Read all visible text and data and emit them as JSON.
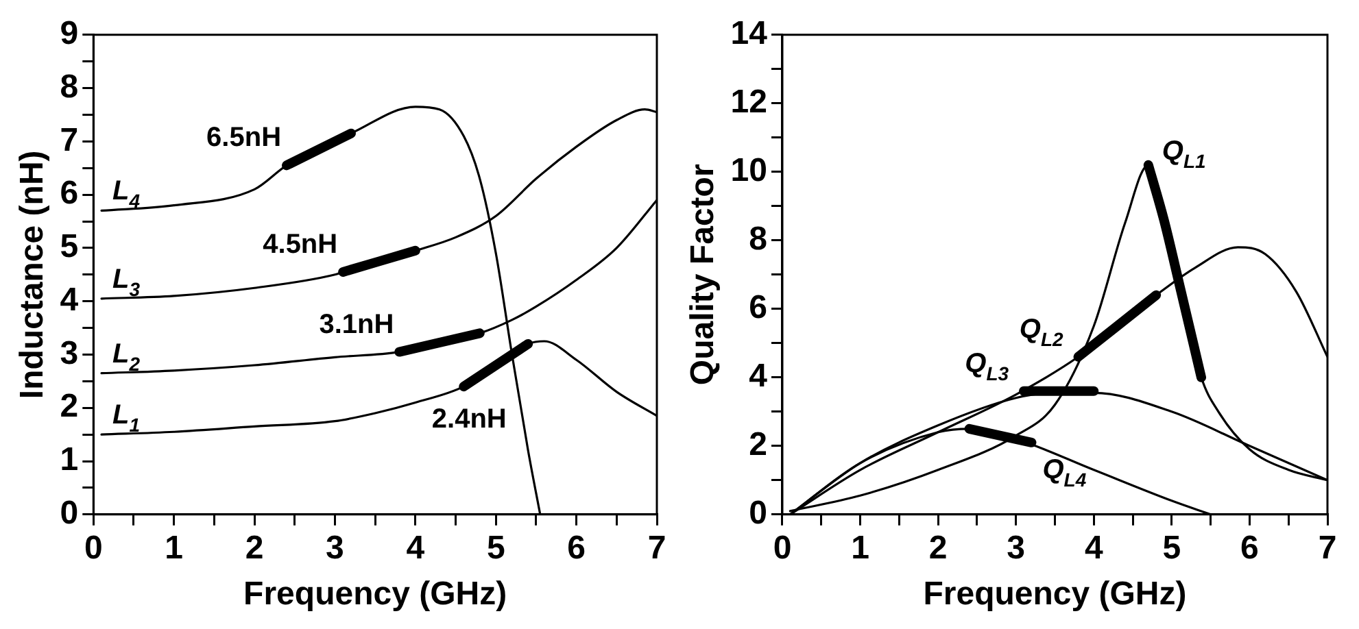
{
  "chart_data": [
    {
      "type": "line",
      "xlabel": "Frequency (GHz)",
      "ylabel": "Inductance (nH)",
      "xlim": [
        0,
        7
      ],
      "ylim": [
        0,
        9
      ],
      "xticks": [
        0,
        {
          "value": 0.5,
          "label": null
        },
        1,
        {
          "value": 1.5,
          "label": null
        },
        2,
        {
          "value": 2.5,
          "label": null
        },
        3,
        {
          "value": 3.5,
          "label": null
        },
        4,
        {
          "value": 4.5,
          "label": null
        },
        5,
        {
          "value": 5.5,
          "label": null
        },
        6,
        {
          "value": 6.5,
          "label": null
        },
        7
      ],
      "yticks": [
        0,
        {
          "value": 0.5,
          "label": null
        },
        1,
        {
          "value": 1.5,
          "label": null
        },
        2,
        {
          "value": 2.5,
          "label": null
        },
        3,
        {
          "value": 3.5,
          "label": null
        },
        4,
        {
          "value": 4.5,
          "label": null
        },
        5,
        {
          "value": 5.5,
          "label": null
        },
        6,
        {
          "value": 6.5,
          "label": null
        },
        7,
        {
          "value": 7.5,
          "label": null
        },
        8,
        {
          "value": 8.5,
          "label": null
        },
        9
      ],
      "grid": false,
      "legend": false,
      "series": [
        {
          "name": "L$_{4}$",
          "color": "#000000",
          "x": [
            0.1,
            1,
            2,
            2.4,
            3.2,
            4,
            4.3,
            4.6,
            4.8,
            5,
            5.2,
            5.4,
            5.55
          ],
          "values": [
            5.7,
            5.8,
            6.1,
            6.55,
            7.15,
            7.65,
            7.6,
            7.1,
            6.3,
            4.9,
            3,
            1.2,
            0
          ]
        },
        {
          "name": "L$_{3}$",
          "color": "#000000",
          "x": [
            0.1,
            1,
            2,
            3,
            3.1,
            4,
            4.5,
            5,
            5.5,
            6,
            6.5,
            6.85,
            7
          ],
          "values": [
            4.05,
            4.1,
            4.25,
            4.5,
            4.55,
            4.95,
            5.2,
            5.6,
            6.3,
            6.9,
            7.4,
            7.6,
            7.55
          ]
        },
        {
          "name": "L$_{2}$",
          "color": "#000000",
          "x": [
            0.1,
            1,
            2,
            3,
            3.8,
            4.8,
            5.2,
            5.5,
            6,
            6.5,
            7
          ],
          "values": [
            2.65,
            2.7,
            2.8,
            2.95,
            3.05,
            3.4,
            3.65,
            3.9,
            4.4,
            5,
            5.9
          ]
        },
        {
          "name": "L$_{1}$",
          "color": "#000000",
          "x": [
            0.1,
            1,
            2,
            3,
            3.5,
            4,
            4.6,
            5,
            5.4,
            5.6,
            6,
            6.5,
            7
          ],
          "values": [
            1.5,
            1.55,
            1.65,
            1.75,
            1.9,
            2.1,
            2.4,
            2.8,
            3.2,
            3.25,
            2.9,
            2.3,
            1.85
          ]
        },
        {
          "name": "6.5nH",
          "color": "#000000",
          "x": [
            2.4,
            3.2
          ],
          "values": [
            6.55,
            7.15
          ]
        },
        {
          "name": "4.5nH",
          "color": "#000000",
          "x": [
            3.1,
            4
          ],
          "values": [
            4.55,
            4.95
          ]
        },
        {
          "name": "3.1nH",
          "color": "#000000",
          "x": [
            3.8,
            4.8
          ],
          "values": [
            3.05,
            3.4
          ]
        },
        {
          "name": "2.4nH",
          "color": "#000000",
          "x": [
            4.6,
            5.4
          ],
          "values": [
            2.4,
            3.2
          ]
        }
      ]
    },
    {
      "type": "line",
      "xlabel": "Frequency (GHz)",
      "ylabel": "Quality Factor",
      "xlim": [
        0,
        7
      ],
      "ylim": [
        0,
        14
      ],
      "xticks": [
        0,
        {
          "value": 0.5,
          "label": null
        },
        1,
        {
          "value": 1.5,
          "label": null
        },
        2,
        {
          "value": 2.5,
          "label": null
        },
        3,
        {
          "value": 3.5,
          "label": null
        },
        4,
        {
          "value": 4.5,
          "label": null
        },
        5,
        {
          "value": 5.5,
          "label": null
        },
        6,
        {
          "value": 6.5,
          "label": null
        },
        7
      ],
      "yticks": [
        0,
        {
          "value": 1,
          "label": null
        },
        2,
        {
          "value": 3,
          "label": null
        },
        4,
        {
          "value": 5,
          "label": null
        },
        6,
        {
          "value": 7,
          "label": null
        },
        8,
        {
          "value": 9,
          "label": null
        },
        10,
        {
          "value": 11,
          "label": null
        },
        12,
        {
          "value": 13,
          "label": null
        },
        14
      ],
      "grid": false,
      "legend": false,
      "series": [
        {
          "color": "#000000",
          "x": [
            0.1,
            1,
            2,
            3,
            3.5,
            4,
            4.4,
            4.7,
            4.9,
            5.1,
            5.38,
            5.6,
            6,
            6.5,
            7
          ],
          "values": [
            0.1,
            0.55,
            1.3,
            2.3,
            3.2,
            5.5,
            8.5,
            10.2,
            8.6,
            6.7,
            4,
            3,
            1.9,
            1.3,
            1
          ]
        },
        {
          "color": "#000000",
          "x": [
            0.1,
            1,
            2,
            3,
            3.8,
            4.8,
            5.3,
            5.85,
            6.2,
            6.6,
            7
          ],
          "values": [
            0,
            1.3,
            2.4,
            3.5,
            4.6,
            6.4,
            7.2,
            7.8,
            7.6,
            6.5,
            4.6
          ]
        },
        {
          "color": "#000000",
          "x": [
            0.1,
            1,
            2,
            3,
            3.5,
            4,
            5,
            6,
            7
          ],
          "values": [
            0,
            1.5,
            2.6,
            3.4,
            3.55,
            3.55,
            3,
            2,
            1
          ]
        },
        {
          "color": "#000000",
          "x": [
            0.1,
            1,
            2,
            2.4,
            3,
            4,
            5,
            5.5
          ],
          "values": [
            0,
            1.5,
            2.4,
            2.5,
            2.2,
            1.3,
            0.4,
            0
          ]
        },
        {
          "name": "Q$_{L1}$",
          "color": "#000000",
          "x": [
            4.7,
            4.9,
            5.1,
            5.38
          ],
          "values": [
            10.2,
            8.6,
            6.7,
            4
          ]
        },
        {
          "name": "Q$_{L2}$",
          "color": "#000000",
          "x": [
            3.8,
            4.8
          ],
          "values": [
            4.6,
            6.4
          ]
        },
        {
          "name": "Q$_{L3}$",
          "color": "#000000",
          "x": [
            3.1,
            4
          ],
          "values": [
            3.6,
            3.6
          ]
        },
        {
          "name": "Q$_{L4}$",
          "color": "#000000",
          "x": [
            2.4,
            3.2
          ],
          "values": [
            2.5,
            2.1
          ]
        }
      ]
    }
  ]
}
